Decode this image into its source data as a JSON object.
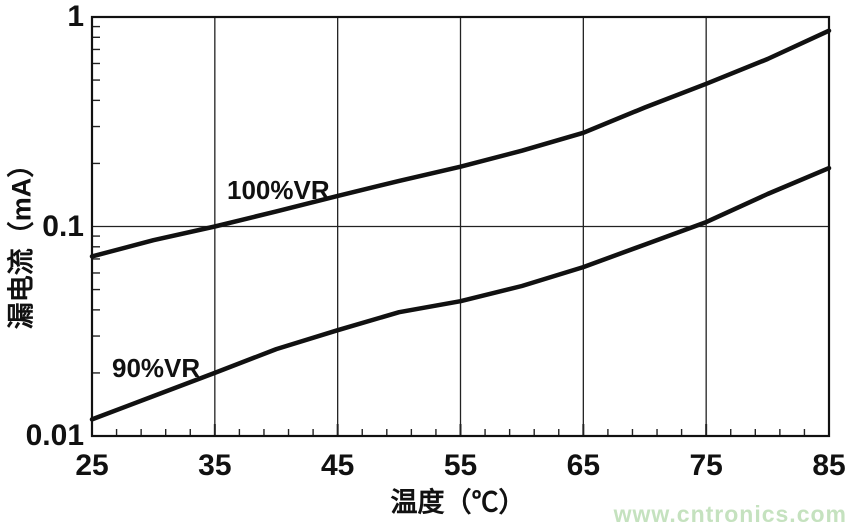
{
  "chart_data": {
    "type": "line",
    "title": "",
    "xlabel": "温度（℃）",
    "ylabel": "漏电流（mA）",
    "x_axis": {
      "min": 25,
      "max": 85,
      "scale": "linear",
      "major_ticks": [
        25,
        35,
        45,
        55,
        65,
        75,
        85
      ],
      "minor_tick_step": 2,
      "gridlines": [
        35,
        45,
        55,
        65,
        75
      ]
    },
    "y_axis": {
      "min": 0.01,
      "max": 1,
      "scale": "log",
      "major_ticks": [
        {
          "value": 1,
          "label": "1"
        },
        {
          "value": 0.1,
          "label": "0.1"
        },
        {
          "value": 0.01,
          "label": "0.01"
        }
      ],
      "minor_ticks": [
        0.9,
        0.8,
        0.7,
        0.6,
        0.5,
        0.4,
        0.3,
        0.2,
        0.09,
        0.08,
        0.07,
        0.06,
        0.05,
        0.04,
        0.03,
        0.02
      ],
      "gridlines": [
        0.1
      ]
    },
    "series": [
      {
        "name": "100%VR",
        "x": [
          25,
          30,
          35,
          40,
          45,
          50,
          55,
          60,
          65,
          70,
          75,
          80,
          85
        ],
        "y": [
          0.072,
          0.086,
          0.1,
          0.118,
          0.14,
          0.165,
          0.193,
          0.23,
          0.28,
          0.37,
          0.48,
          0.63,
          0.86
        ]
      },
      {
        "name": "90%VR",
        "x": [
          25,
          30,
          35,
          40,
          45,
          50,
          55,
          60,
          65,
          70,
          75,
          80,
          85
        ],
        "y": [
          0.012,
          0.0155,
          0.02,
          0.026,
          0.032,
          0.039,
          0.044,
          0.052,
          0.064,
          0.082,
          0.105,
          0.143,
          0.19
        ]
      }
    ],
    "legend_position": "on-curve",
    "grid": "major-only",
    "watermark": "www.cntronics.com"
  },
  "colors": {
    "line": "#111111",
    "grid": "#222222",
    "watermark": "#c5e2bf"
  }
}
